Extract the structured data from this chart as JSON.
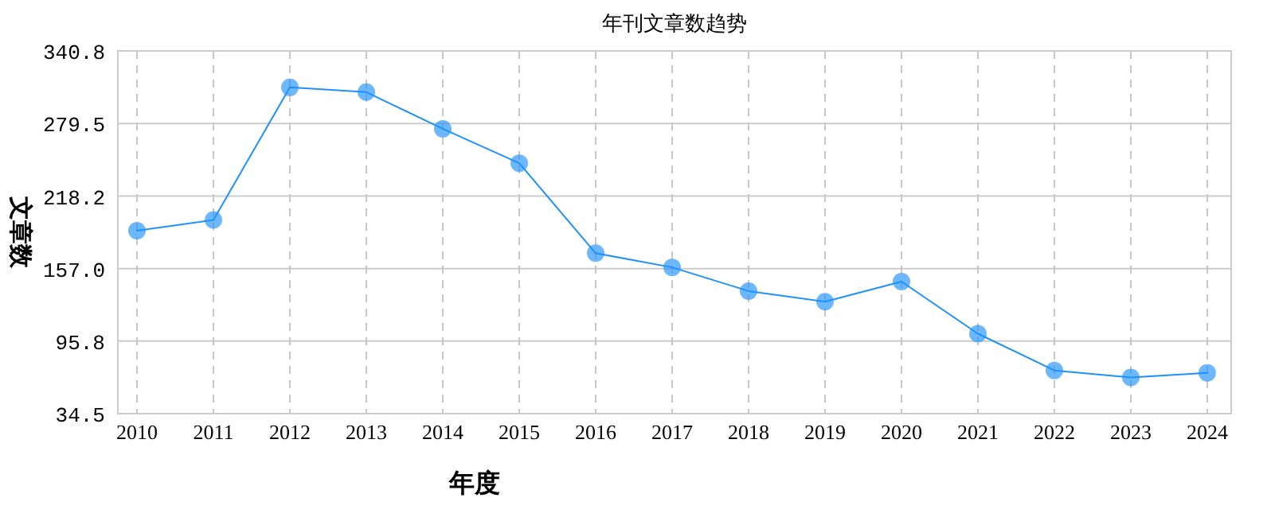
{
  "chart_data": {
    "type": "line",
    "title": "年刊文章数趋势",
    "xlabel": "年度",
    "ylabel": "文章数",
    "categories": [
      "2010",
      "2011",
      "2012",
      "2013",
      "2014",
      "2015",
      "2016",
      "2017",
      "2018",
      "2019",
      "2020",
      "2021",
      "2022",
      "2023",
      "2024"
    ],
    "series": [
      {
        "color": "#1e90ff",
        "values": [
          189,
          198,
          310,
          306,
          275,
          246,
          170,
          158,
          138,
          129,
          146,
          102,
          71,
          65,
          69
        ]
      }
    ],
    "ylim": [
      34.5,
      340.8
    ],
    "yticks": [
      34.5,
      95.8,
      {
        "value": 157,
        "label": "157.0"
      },
      218.2,
      279.5,
      340.8
    ],
    "grid": true,
    "marker": "circle",
    "line_style": "solid"
  }
}
